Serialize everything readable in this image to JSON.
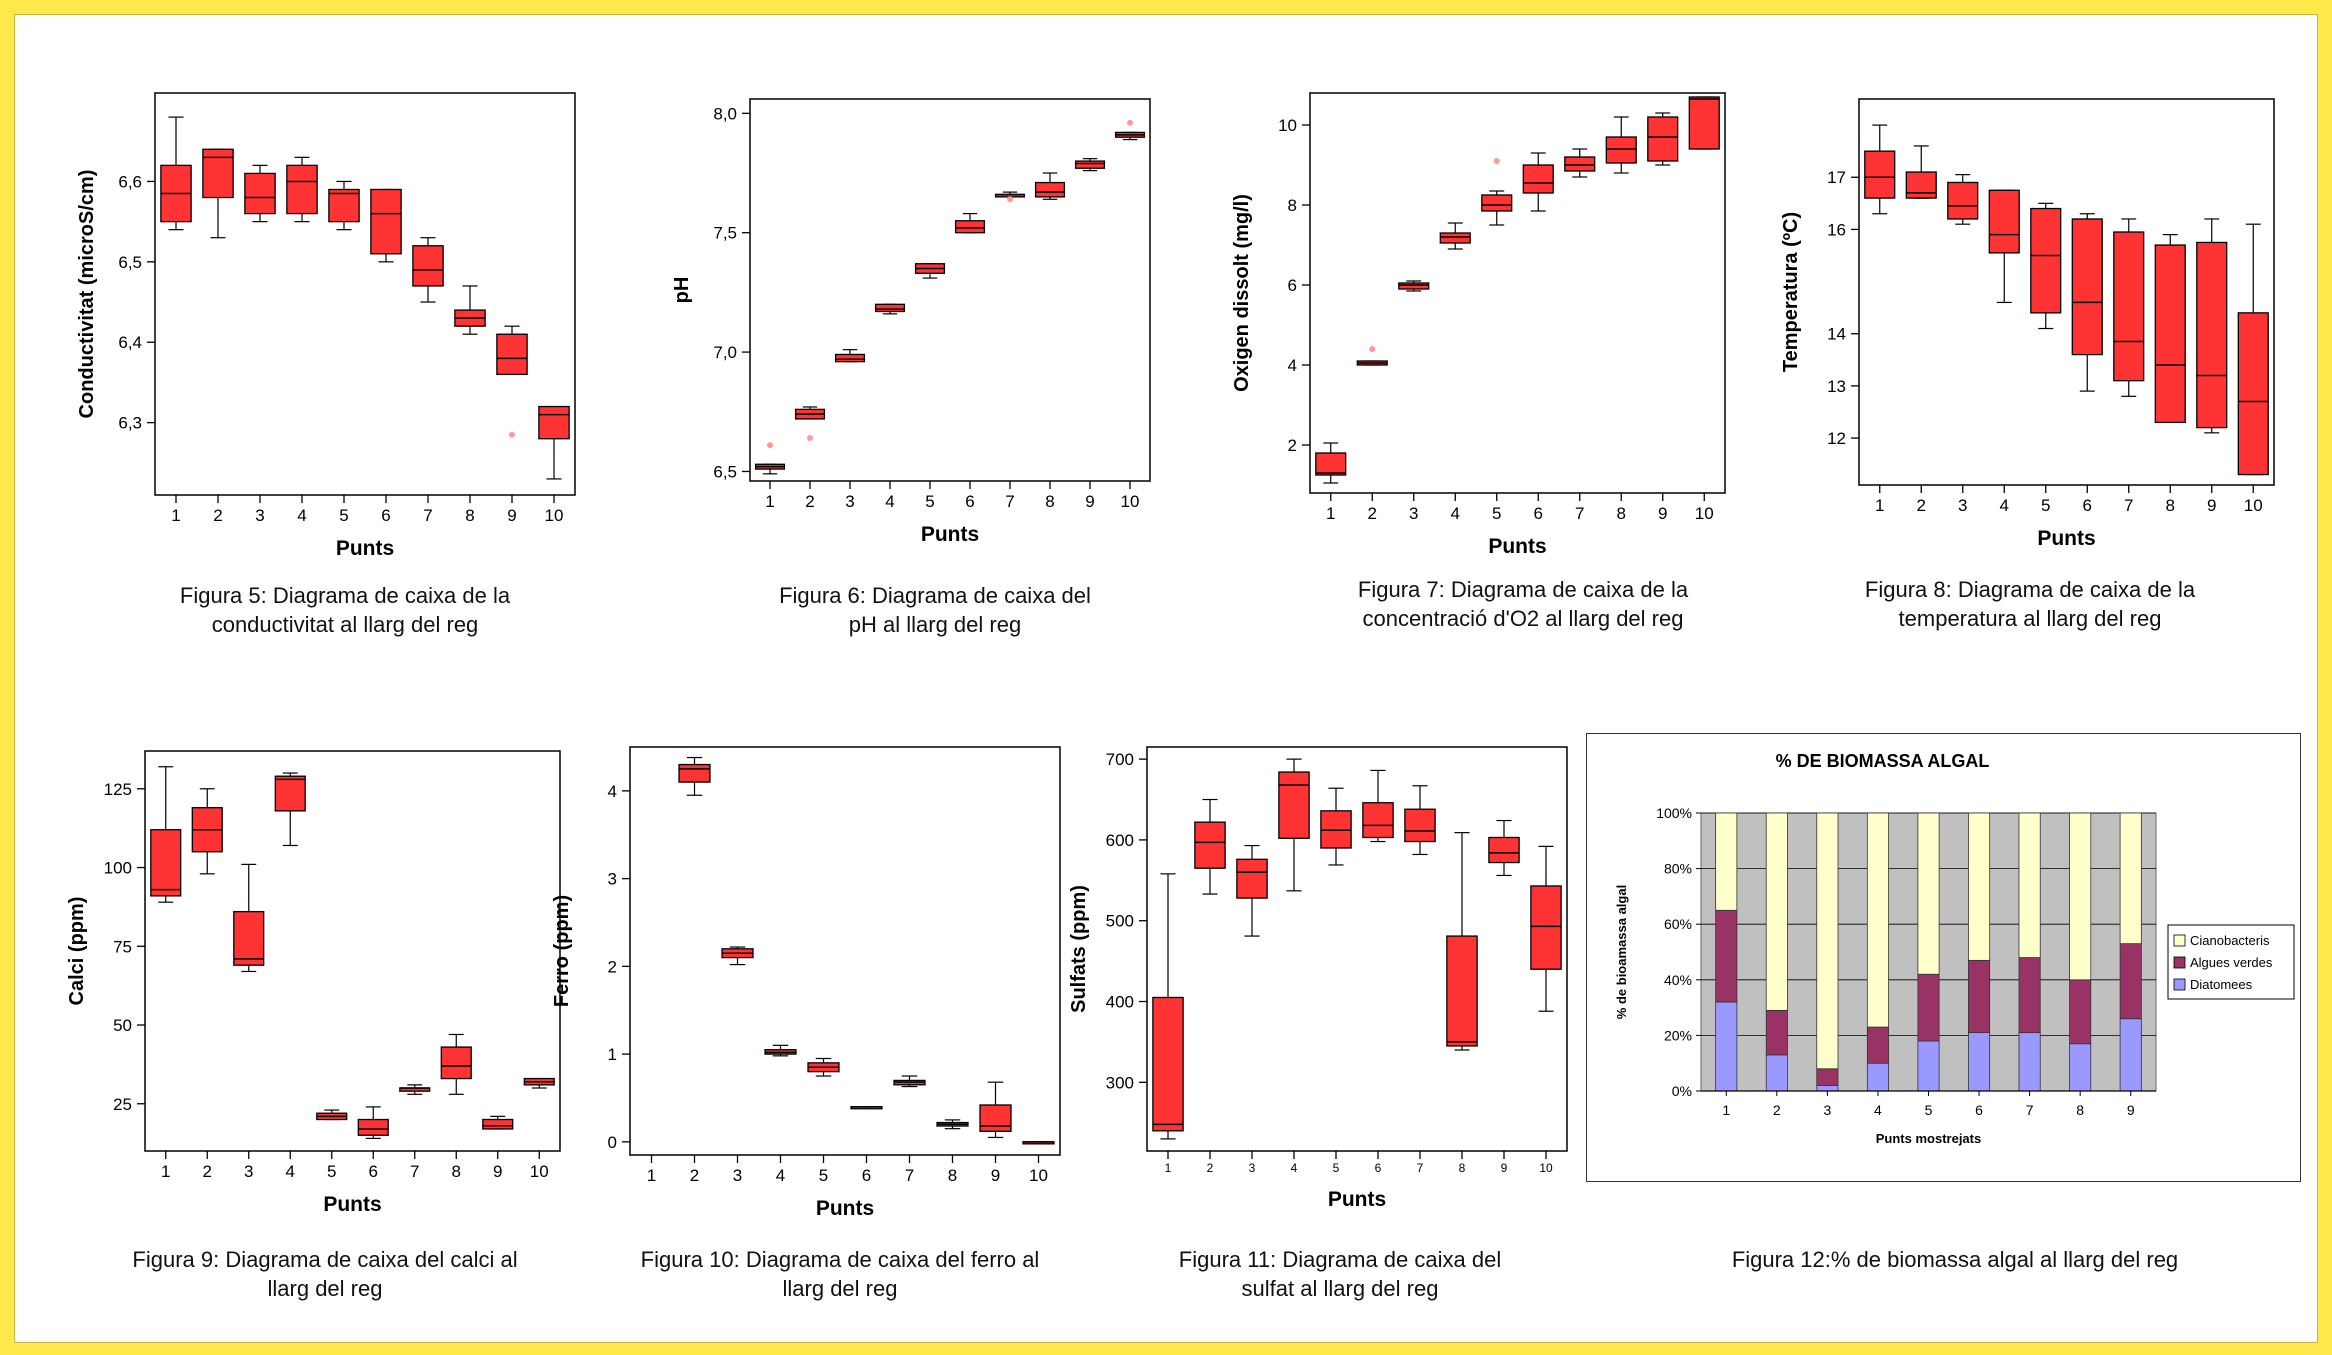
{
  "charts": {
    "boxes": [
      {
        "type": "box",
        "ylabel": "Conductivitat (microS/cm)",
        "xlabel": "Punts",
        "ylim": [
          6.21,
          6.71
        ],
        "yticks": [
          6.3,
          6.4,
          6.5,
          6.6
        ],
        "ytick_labels": [
          "6,3",
          "6,4",
          "6,5",
          "6,6"
        ],
        "categories": [
          "1",
          "2",
          "3",
          "4",
          "5",
          "6",
          "7",
          "8",
          "9",
          "10"
        ],
        "boxes": [
          {
            "min": 6.54,
            "q1": 6.55,
            "median": 6.585,
            "q3": 6.62,
            "max": 6.68
          },
          {
            "min": 6.53,
            "q1": 6.58,
            "median": 6.63,
            "q3": 6.64,
            "max": 6.64
          },
          {
            "min": 6.55,
            "q1": 6.56,
            "median": 6.58,
            "q3": 6.61,
            "max": 6.62
          },
          {
            "min": 6.55,
            "q1": 6.56,
            "median": 6.6,
            "q3": 6.62,
            "max": 6.63
          },
          {
            "min": 6.54,
            "q1": 6.55,
            "median": 6.585,
            "q3": 6.59,
            "max": 6.6
          },
          {
            "min": 6.5,
            "q1": 6.51,
            "median": 6.56,
            "q3": 6.59,
            "max": 6.59
          },
          {
            "min": 6.45,
            "q1": 6.47,
            "median": 6.49,
            "q3": 6.52,
            "max": 6.53
          },
          {
            "min": 6.41,
            "q1": 6.42,
            "median": 6.43,
            "q3": 6.44,
            "max": 6.47
          },
          {
            "min": 6.36,
            "q1": 6.36,
            "median": 6.38,
            "q3": 6.41,
            "max": 6.42
          },
          {
            "min": 6.23,
            "q1": 6.28,
            "median": 6.31,
            "q3": 6.32,
            "max": 6.32
          }
        ],
        "outliers": [
          {
            "cat": 9,
            "value": 6.285
          }
        ]
      },
      {
        "type": "box",
        "ylabel": "pH",
        "xlabel": "Punts",
        "ylim": [
          6.46,
          8.06
        ],
        "yticks": [
          6.5,
          7.0,
          7.5,
          8.0
        ],
        "ytick_labels": [
          "6,5",
          "7,0",
          "7,5",
          "8,0"
        ],
        "categories": [
          "1",
          "2",
          "3",
          "4",
          "5",
          "6",
          "7",
          "8",
          "9",
          "10"
        ],
        "boxes": [
          {
            "min": 6.49,
            "q1": 6.51,
            "median": 6.52,
            "q3": 6.53,
            "max": 6.53
          },
          {
            "min": 6.72,
            "q1": 6.72,
            "median": 6.74,
            "q3": 6.76,
            "max": 6.77
          },
          {
            "min": 6.96,
            "q1": 6.96,
            "median": 6.97,
            "q3": 6.99,
            "max": 7.01
          },
          {
            "min": 7.16,
            "q1": 7.17,
            "median": 7.18,
            "q3": 7.2,
            "max": 7.2
          },
          {
            "min": 7.31,
            "q1": 7.33,
            "median": 7.35,
            "q3": 7.37,
            "max": 7.37
          },
          {
            "min": 7.5,
            "q1": 7.5,
            "median": 7.52,
            "q3": 7.55,
            "max": 7.58
          },
          {
            "min": 7.65,
            "q1": 7.65,
            "median": 7.66,
            "q3": 7.66,
            "max": 7.67
          },
          {
            "min": 7.64,
            "q1": 7.65,
            "median": 7.67,
            "q3": 7.71,
            "max": 7.75
          },
          {
            "min": 7.76,
            "q1": 7.77,
            "median": 7.79,
            "q3": 7.8,
            "max": 7.81
          },
          {
            "min": 7.89,
            "q1": 7.9,
            "median": 7.91,
            "q3": 7.92,
            "max": 7.92
          }
        ],
        "outliers": [
          {
            "cat": 1,
            "value": 6.61
          },
          {
            "cat": 2,
            "value": 6.64
          },
          {
            "cat": 7,
            "value": 7.64
          },
          {
            "cat": 10,
            "value": 7.96
          }
        ]
      },
      {
        "type": "box",
        "ylabel": "Oxigen dissolt (mg/l)",
        "xlabel": "Punts",
        "ylim": [
          0.8,
          10.8
        ],
        "yticks": [
          2,
          4,
          6,
          8,
          10
        ],
        "ytick_labels": [
          "2",
          "4",
          "6",
          "8",
          "10"
        ],
        "categories": [
          "1",
          "2",
          "3",
          "4",
          "5",
          "6",
          "7",
          "8",
          "9",
          "10"
        ],
        "boxes": [
          {
            "min": 1.05,
            "q1": 1.25,
            "median": 1.3,
            "q3": 1.8,
            "max": 2.05
          },
          {
            "min": 4.0,
            "q1": 4.0,
            "median": 4.05,
            "q3": 4.1,
            "max": 4.1
          },
          {
            "min": 5.85,
            "q1": 5.9,
            "median": 6.0,
            "q3": 6.05,
            "max": 6.1
          },
          {
            "min": 6.9,
            "q1": 7.05,
            "median": 7.2,
            "q3": 7.3,
            "max": 7.55
          },
          {
            "min": 7.5,
            "q1": 7.85,
            "median": 8.0,
            "q3": 8.25,
            "max": 8.35
          },
          {
            "min": 7.85,
            "q1": 8.3,
            "median": 8.55,
            "q3": 9.0,
            "max": 9.3
          },
          {
            "min": 8.7,
            "q1": 8.85,
            "median": 9.0,
            "q3": 9.2,
            "max": 9.4
          },
          {
            "min": 8.8,
            "q1": 9.05,
            "median": 9.4,
            "q3": 9.7,
            "max": 10.2
          },
          {
            "min": 9.0,
            "q1": 9.1,
            "median": 9.7,
            "q3": 10.2,
            "max": 10.3
          },
          {
            "min": 9.4,
            "q1": 9.4,
            "median": 10.65,
            "q3": 10.7,
            "max": 10.7
          }
        ],
        "outliers": [
          {
            "cat": 2,
            "value": 4.4
          },
          {
            "cat": 5,
            "value": 9.1
          }
        ]
      },
      {
        "type": "box",
        "ylabel": "Temperatura (ºC)",
        "xlabel": "Punts",
        "ylim": [
          11.1,
          18.5
        ],
        "yticks": [
          12,
          13,
          14,
          16,
          17
        ],
        "ytick_labels": [
          "12",
          "13",
          "14",
          "16",
          "17"
        ],
        "categories": [
          "1",
          "2",
          "3",
          "4",
          "5",
          "6",
          "7",
          "8",
          "9",
          "10"
        ],
        "boxes": [
          {
            "min": 16.3,
            "q1": 16.6,
            "median": 17.0,
            "q3": 17.5,
            "max": 18.0
          },
          {
            "min": 16.6,
            "q1": 16.6,
            "median": 16.7,
            "q3": 17.1,
            "max": 17.6
          },
          {
            "min": 16.1,
            "q1": 16.2,
            "median": 16.45,
            "q3": 16.9,
            "max": 17.05
          },
          {
            "min": 14.6,
            "q1": 15.55,
            "median": 15.9,
            "q3": 16.75,
            "max": 16.75
          },
          {
            "min": 14.1,
            "q1": 14.4,
            "median": 15.5,
            "q3": 16.4,
            "max": 16.5
          },
          {
            "min": 12.9,
            "q1": 13.6,
            "median": 14.6,
            "q3": 16.2,
            "max": 16.3
          },
          {
            "min": 12.8,
            "q1": 13.1,
            "median": 13.85,
            "q3": 15.95,
            "max": 16.2
          },
          {
            "min": 12.3,
            "q1": 12.3,
            "median": 13.4,
            "q3": 15.7,
            "max": 15.9
          },
          {
            "min": 12.1,
            "q1": 12.2,
            "median": 13.2,
            "q3": 15.75,
            "max": 16.2
          },
          {
            "min": 11.3,
            "q1": 11.3,
            "median": 12.7,
            "q3": 14.4,
            "max": 16.1
          }
        ],
        "outliers": []
      },
      {
        "type": "box",
        "ylabel": "Calci (ppm)",
        "xlabel": "Punts",
        "ylim": [
          10,
          137
        ],
        "yticks": [
          25,
          50,
          75,
          100,
          125
        ],
        "ytick_labels": [
          "25",
          "50",
          "75",
          "100",
          "125"
        ],
        "categories": [
          "1",
          "2",
          "3",
          "4",
          "5",
          "6",
          "7",
          "8",
          "9",
          "10"
        ],
        "boxes": [
          {
            "min": 89,
            "q1": 91,
            "median": 93,
            "q3": 112,
            "max": 132
          },
          {
            "min": 98,
            "q1": 105,
            "median": 112,
            "q3": 119,
            "max": 125
          },
          {
            "min": 67,
            "q1": 69,
            "median": 71,
            "q3": 86,
            "max": 101
          },
          {
            "min": 107,
            "q1": 118,
            "median": 128,
            "q3": 129,
            "max": 130
          },
          {
            "min": 20,
            "q1": 20,
            "median": 21,
            "q3": 22,
            "max": 23
          },
          {
            "min": 14,
            "q1": 15,
            "median": 17,
            "q3": 20,
            "max": 24
          },
          {
            "min": 28,
            "q1": 29,
            "median": 30,
            "q3": 30,
            "max": 31
          },
          {
            "min": 28,
            "q1": 33,
            "median": 37,
            "q3": 43,
            "max": 47
          },
          {
            "min": 17,
            "q1": 17,
            "median": 18,
            "q3": 20,
            "max": 21
          },
          {
            "min": 30,
            "q1": 31,
            "median": 32,
            "q3": 33,
            "max": 33
          }
        ],
        "outliers": []
      },
      {
        "type": "box",
        "ylabel": "Ferro (ppm)",
        "xlabel": "Punts",
        "ylim": [
          -0.15,
          4.5
        ],
        "yticks": [
          0,
          1,
          2,
          3,
          4
        ],
        "ytick_labels": [
          "0",
          "1",
          "2",
          "3",
          "4"
        ],
        "categories": [
          "1",
          "2",
          "3",
          "4",
          "5",
          "6",
          "7",
          "8",
          "9",
          "10"
        ],
        "boxes": [
          null,
          {
            "min": 3.95,
            "q1": 4.1,
            "median": 4.25,
            "q3": 4.3,
            "max": 4.38
          },
          {
            "min": 2.02,
            "q1": 2.1,
            "median": 2.15,
            "q3": 2.2,
            "max": 2.22
          },
          {
            "min": 0.98,
            "q1": 1.0,
            "median": 1.02,
            "q3": 1.05,
            "max": 1.1
          },
          {
            "min": 0.75,
            "q1": 0.8,
            "median": 0.85,
            "q3": 0.9,
            "max": 0.95
          },
          {
            "min": 0.4,
            "q1": 0.4,
            "median": 0.4,
            "q3": 0.4,
            "max": 0.4
          },
          {
            "min": 0.63,
            "q1": 0.65,
            "median": 0.68,
            "q3": 0.7,
            "max": 0.75
          },
          {
            "min": 0.15,
            "q1": 0.18,
            "median": 0.2,
            "q3": 0.22,
            "max": 0.25
          },
          {
            "min": 0.05,
            "q1": 0.12,
            "median": 0.18,
            "q3": 0.42,
            "max": 0.68
          },
          {
            "min": 0.0,
            "q1": 0.0,
            "median": 0.0,
            "q3": 0.0,
            "max": 0.0
          }
        ],
        "outliers": []
      },
      {
        "type": "box",
        "ylabel": "Sulfats (ppm)",
        "xlabel": "Punts",
        "ylim": [
          215,
          715
        ],
        "yticks": [
          300,
          400,
          500,
          600,
          700
        ],
        "ytick_labels": [
          "300",
          "400",
          "500",
          "600",
          "700"
        ],
        "categories": [
          "1",
          "2",
          "3",
          "4",
          "5",
          "6",
          "7",
          "8",
          "9",
          "10"
        ],
        "boxes": [
          {
            "min": 230,
            "q1": 240,
            "median": 248,
            "q3": 405,
            "max": 558
          },
          {
            "min": 533,
            "q1": 565,
            "median": 597,
            "q3": 622,
            "max": 650
          },
          {
            "min": 481,
            "q1": 528,
            "median": 560,
            "q3": 576,
            "max": 593
          },
          {
            "min": 537,
            "q1": 602,
            "median": 668,
            "q3": 684,
            "max": 700
          },
          {
            "min": 569,
            "q1": 590,
            "median": 612,
            "q3": 636,
            "max": 664
          },
          {
            "min": 598,
            "q1": 603,
            "median": 618,
            "q3": 646,
            "max": 686
          },
          {
            "min": 582,
            "q1": 598,
            "median": 611,
            "q3": 638,
            "max": 667
          },
          {
            "min": 340,
            "q1": 345,
            "median": 350,
            "q3": 481,
            "max": 609
          },
          {
            "min": 556,
            "q1": 572,
            "median": 584,
            "q3": 603,
            "max": 624
          },
          {
            "min": 388,
            "q1": 440,
            "median": 493,
            "q3": 543,
            "max": 592
          }
        ],
        "outliers": []
      }
    ],
    "biomass": {
      "type": "bar",
      "stacked": true,
      "title": "% DE BIOMASSA ALGAL",
      "xlabel": "Punts mostrejats",
      "ylabel": "% de bioamassa algal",
      "categories": [
        "1",
        "2",
        "3",
        "4",
        "5",
        "6",
        "7",
        "8",
        "9"
      ],
      "ytick_labels": [
        "0%",
        "20%",
        "40%",
        "60%",
        "80%",
        "100%"
      ],
      "legend_position": "right",
      "series": [
        {
          "name": "Diatomees",
          "color": "#9999ff",
          "values": [
            32,
            13,
            2,
            10,
            18,
            21,
            21,
            17,
            26
          ]
        },
        {
          "name": "Algues verdes",
          "color": "#993366",
          "values": [
            33,
            16,
            6,
            13,
            24,
            26,
            27,
            23,
            27
          ]
        },
        {
          "name": "Cianobacteris",
          "color": "#ffffcc",
          "values": [
            35,
            71,
            92,
            77,
            58,
            53,
            52,
            60,
            47
          ]
        }
      ],
      "plot_background": "#c0c0c0"
    }
  },
  "captions": [
    "Figura 5: Diagrama de caixa de la conductivitat al llarg del reg",
    "Figura 6: Diagrama de caixa del pH al llarg del reg",
    "Figura 7: Diagrama de caixa de la concentració d'O2 al llarg del reg",
    "Figura 8: Diagrama de caixa de la temperatura al llarg del reg",
    "Figura 9: Diagrama de caixa del calci al llarg del reg",
    "Figura 10: Diagrama de caixa del ferro al llarg del reg",
    "Figura 11: Diagrama de caixa del sulfat al llarg del reg",
    "Figura 12:% de biomassa algal al llarg del reg"
  ],
  "colors": {
    "box_fill": "#ff3333",
    "box_stroke": "#000000",
    "outlier": "#ff9999",
    "page_border": "#ffe84a"
  }
}
